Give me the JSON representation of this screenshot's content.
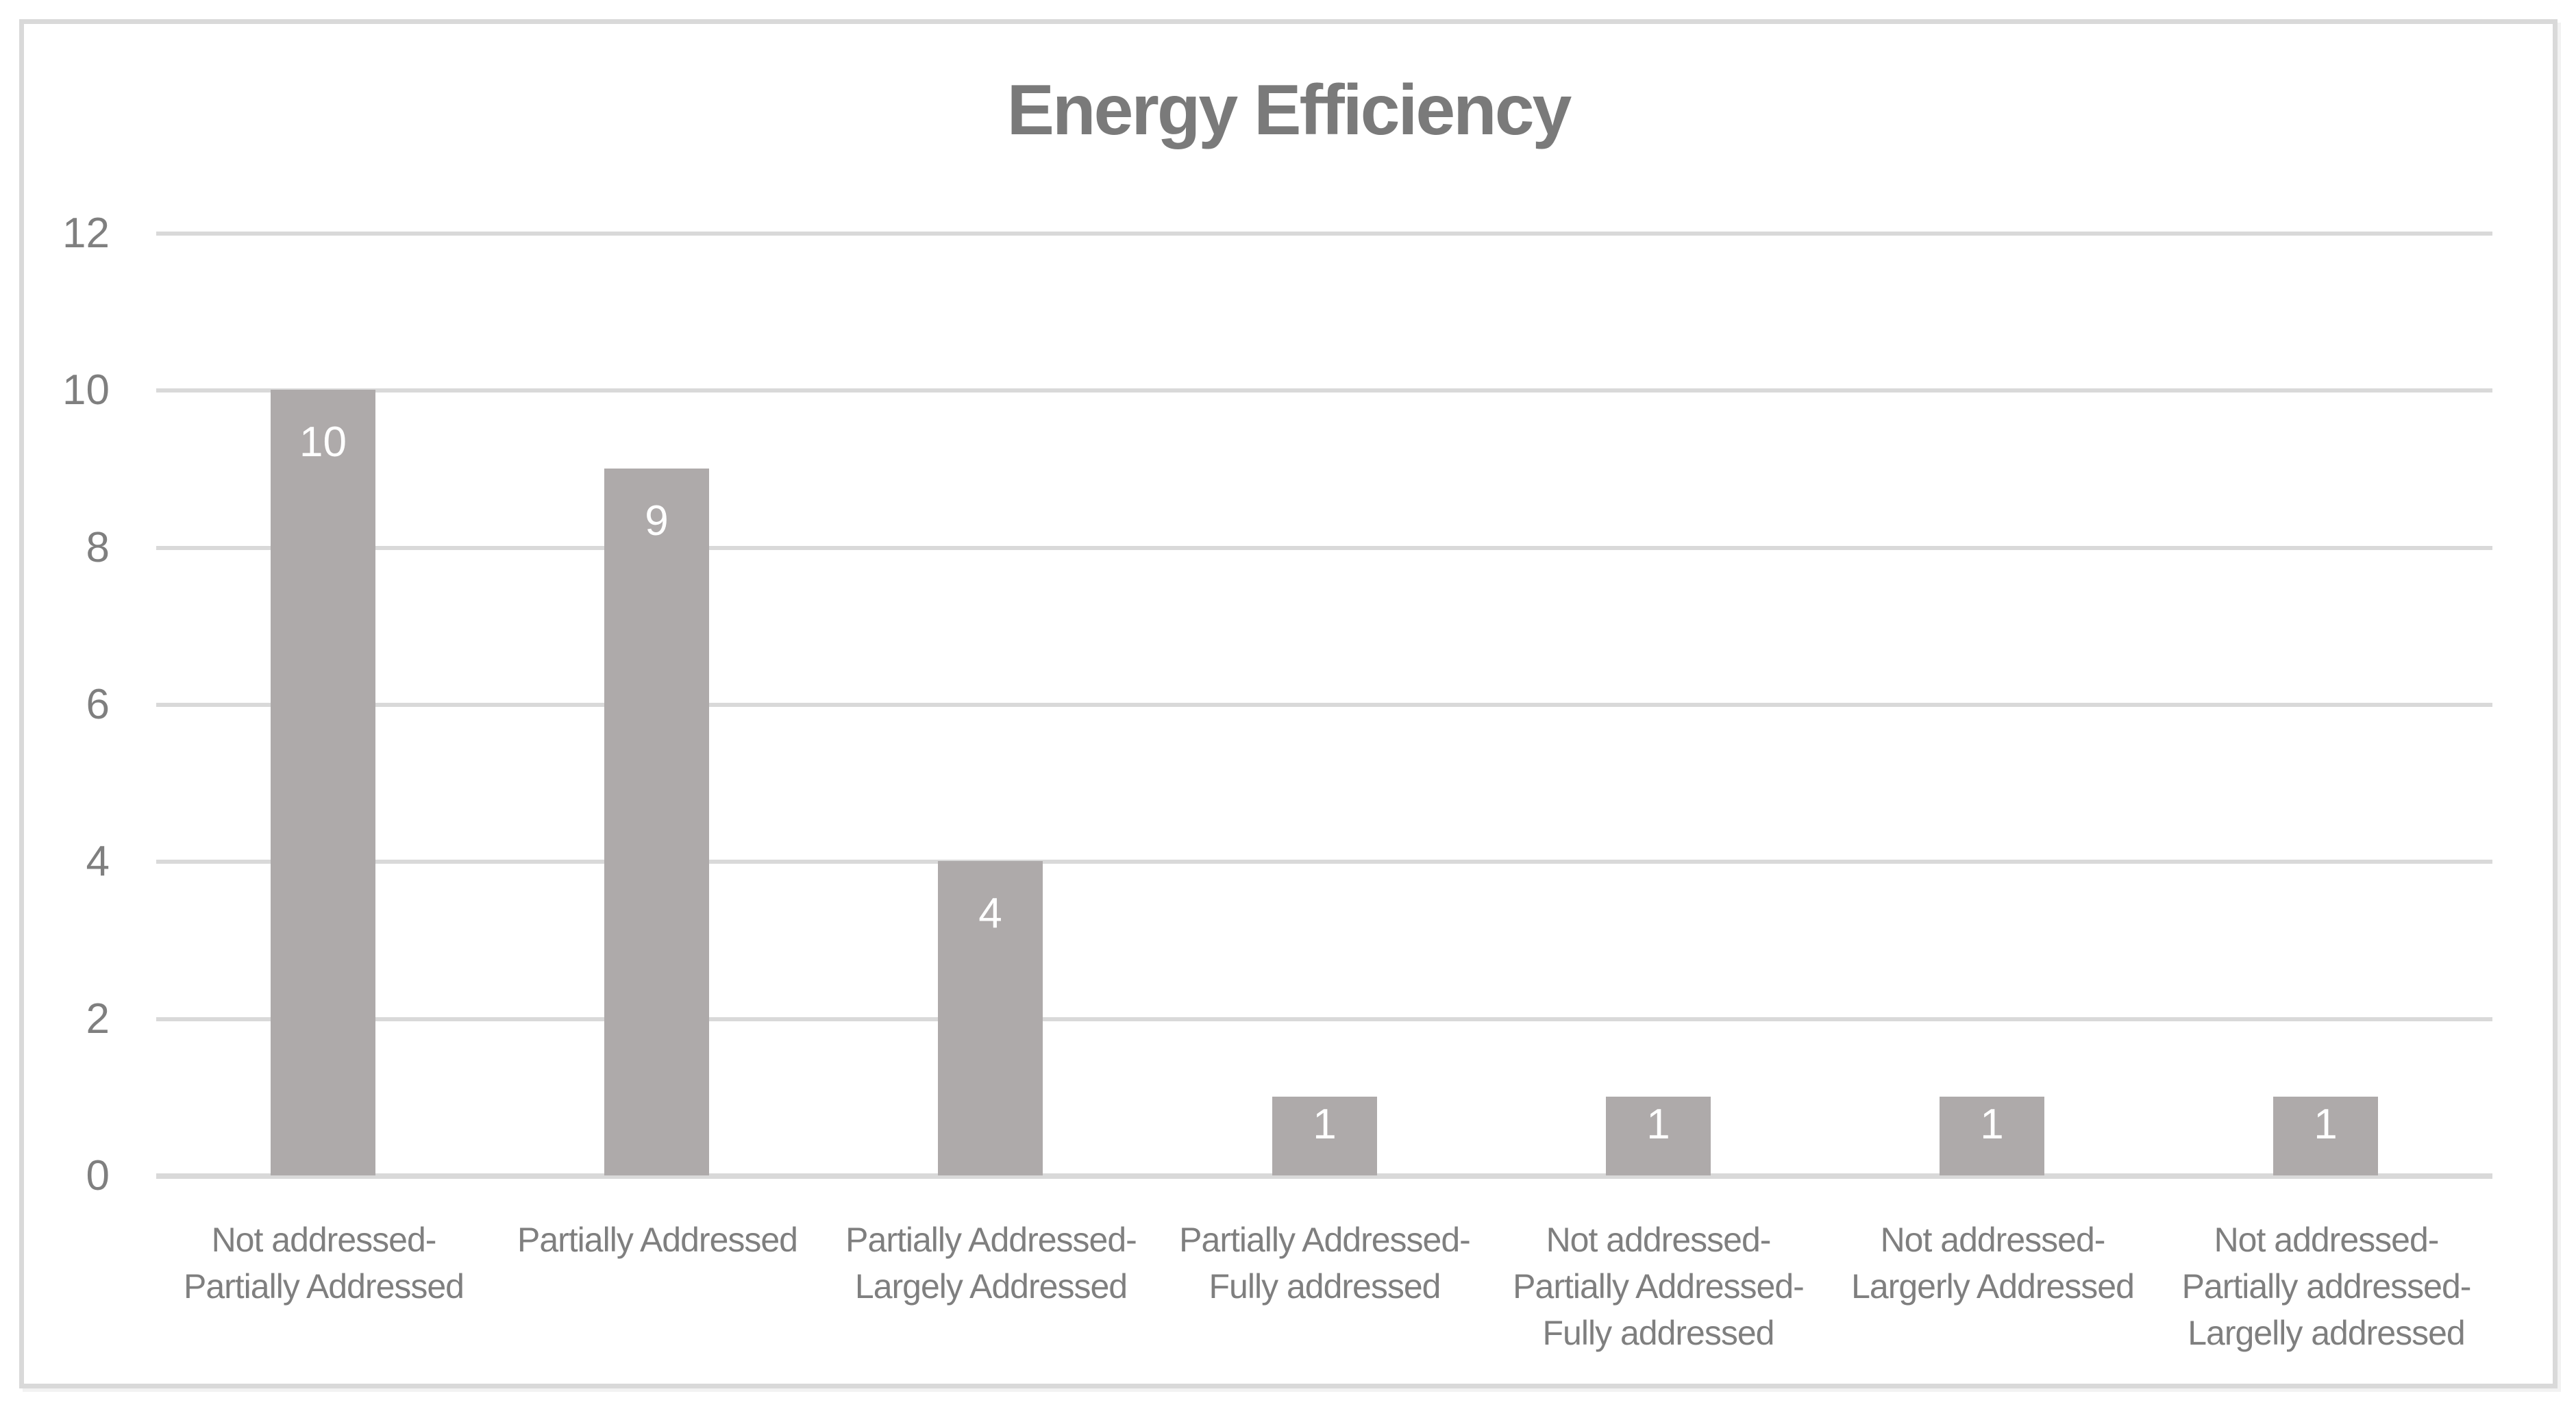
{
  "chart_data": {
    "type": "bar",
    "title": "Energy Efficiency",
    "xlabel": "",
    "ylabel": "",
    "ylim": [
      0,
      12
    ],
    "y_tick_step": 2,
    "grid": true,
    "legend": false,
    "bar_color": "#aeaaaa",
    "gridline_color": "#d9d9d9",
    "title_color": "#7a7a7a",
    "axis_text_color": "#7f7f7f",
    "data_label_color": "#ffffff",
    "categories": [
      "Not addressed- Partially Addressed",
      "Partially Addressed",
      "Partially Addressed- Largely Addressed",
      "Partially Addressed- Fully addressed",
      "Not addressed- Partially Addressed- Fully addressed",
      "Not addressed- Largerly Addressed",
      "Not addressed- Partially addressed- Largelly addressed"
    ],
    "category_lines": [
      [
        "Not addressed-",
        "Partially Addressed"
      ],
      [
        "Partially Addressed"
      ],
      [
        "Partially Addressed-",
        "Largely Addressed"
      ],
      [
        "Partially Addressed-",
        "Fully addressed"
      ],
      [
        "Not addressed-",
        "Partially Addressed-",
        "Fully addressed"
      ],
      [
        "Not addressed-",
        "Largerly Addressed"
      ],
      [
        "Not addressed-",
        "Partially addressed-",
        "Largelly addressed"
      ]
    ],
    "values": [
      10,
      9,
      4,
      1,
      1,
      1,
      1
    ],
    "data_labels": [
      "10",
      "9",
      "4",
      "1",
      "1",
      "1",
      "1"
    ],
    "y_ticks": [
      "12",
      "10",
      "8",
      "6",
      "4",
      "2",
      "0"
    ]
  }
}
